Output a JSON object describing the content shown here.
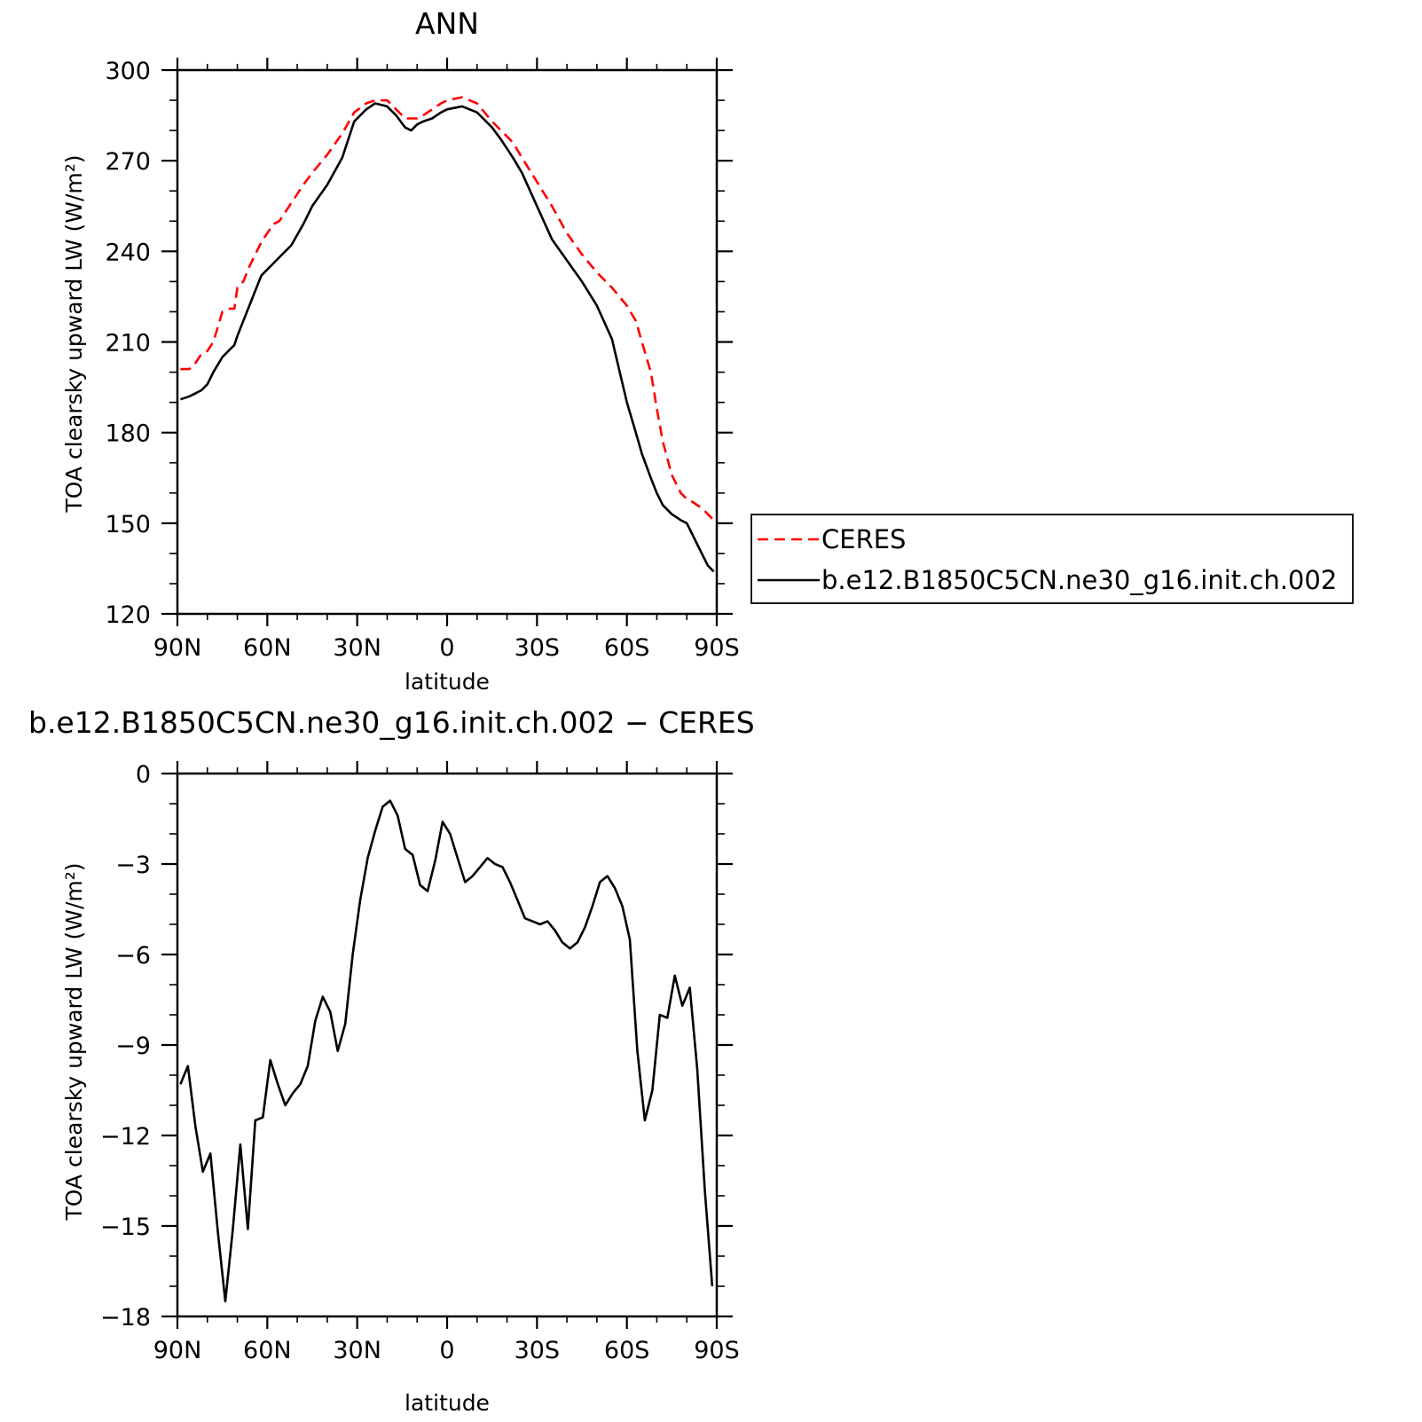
{
  "chart_data": [
    {
      "type": "line",
      "title": "ANN",
      "xlabel": "latitude",
      "ylabel": "TOA clearsky upward LW (W/m²)",
      "x_range": [
        90,
        -90
      ],
      "ylim": [
        120,
        300
      ],
      "x_ticks": [
        {
          "value": 90,
          "label": "90N"
        },
        {
          "value": 60,
          "label": "60N"
        },
        {
          "value": 30,
          "label": "30N"
        },
        {
          "value": 0,
          "label": "0"
        },
        {
          "value": -30,
          "label": "30S"
        },
        {
          "value": -60,
          "label": "60S"
        },
        {
          "value": -90,
          "label": "90S"
        }
      ],
      "y_ticks": [
        120,
        150,
        180,
        210,
        240,
        270,
        300
      ],
      "grid": false,
      "legend_position": "right",
      "series": [
        {
          "name": "CERES",
          "color": "#ff0000",
          "dash": "dashed",
          "x": [
            89,
            86,
            84,
            82,
            80,
            78,
            75,
            73,
            71,
            70,
            68,
            66,
            64,
            62,
            60,
            58,
            56,
            54,
            52,
            48,
            45,
            40,
            35,
            31,
            27,
            24,
            20,
            17,
            14,
            12,
            10,
            8,
            5,
            2,
            0,
            -5,
            -10,
            -15,
            -18,
            -22,
            -25,
            -30,
            -35,
            -40,
            -45,
            -50,
            -55,
            -60,
            -63,
            -65,
            -68,
            -70,
            -72,
            -75,
            -78,
            -80,
            -82,
            -85,
            -87,
            -89
          ],
          "values": [
            201,
            201,
            203,
            206,
            207,
            210,
            220,
            221,
            221,
            228,
            230,
            235,
            239,
            243,
            246,
            249,
            250,
            253,
            256,
            262,
            266,
            272,
            279,
            286,
            289,
            290,
            290,
            287,
            284,
            284,
            284,
            285,
            287,
            289,
            290,
            291,
            289,
            283,
            280,
            276,
            271,
            263,
            255,
            246,
            239,
            233,
            228,
            222,
            217,
            210,
            200,
            188,
            177,
            166,
            160,
            158,
            157,
            155,
            153,
            151
          ]
        },
        {
          "name": "b.e12.B1850C5CN.ne30_g16.init.ch.002",
          "color": "#000000",
          "dash": "solid",
          "x": [
            89,
            86,
            84,
            82,
            80,
            78,
            75,
            73,
            71,
            70,
            68,
            66,
            64,
            62,
            60,
            58,
            56,
            54,
            52,
            48,
            45,
            40,
            35,
            31,
            27,
            24,
            20,
            17,
            14,
            12,
            10,
            8,
            5,
            2,
            0,
            -5,
            -10,
            -15,
            -18,
            -22,
            -25,
            -30,
            -35,
            -40,
            -45,
            -50,
            -55,
            -60,
            -63,
            -65,
            -68,
            -70,
            -72,
            -75,
            -78,
            -80,
            -82,
            -85,
            -87,
            -89
          ],
          "values": [
            191,
            192,
            193,
            194,
            196,
            200,
            205,
            207,
            209,
            212,
            217,
            222,
            227,
            232,
            234,
            236,
            238,
            240,
            242,
            249,
            255,
            262,
            271,
            283,
            287,
            289,
            288,
            285,
            281,
            280,
            282,
            283,
            284,
            286,
            287,
            288,
            286,
            281,
            277,
            271,
            266,
            255,
            244,
            237,
            230,
            222,
            211,
            190,
            180,
            173,
            165,
            160,
            156,
            153,
            151,
            150,
            146,
            140,
            136,
            134
          ]
        }
      ]
    },
    {
      "type": "line",
      "title": "b.e12.B1850C5CN.ne30_g16.init.ch.002 − CERES",
      "xlabel": "latitude",
      "ylabel": "TOA clearsky upward LW (W/m²)",
      "x_range": [
        90,
        -90
      ],
      "ylim": [
        -18,
        0
      ],
      "x_ticks": [
        {
          "value": 90,
          "label": "90N"
        },
        {
          "value": 60,
          "label": "60N"
        },
        {
          "value": 30,
          "label": "30N"
        },
        {
          "value": 0,
          "label": "0"
        },
        {
          "value": -30,
          "label": "30S"
        },
        {
          "value": -60,
          "label": "60S"
        },
        {
          "value": -90,
          "label": "90S"
        }
      ],
      "y_ticks": [
        0,
        -3,
        -6,
        -9,
        -12,
        -15,
        -18
      ],
      "grid": false,
      "series": [
        {
          "name": "b.e12.B1850C5CN.ne30_g16.init.ch.002 − CERES",
          "color": "#000000",
          "dash": "solid",
          "x": [
            89,
            86.5,
            84,
            81.5,
            79,
            76.5,
            74,
            71.5,
            69,
            66.5,
            64,
            61.5,
            59,
            56.5,
            54,
            51.5,
            49,
            46.5,
            44,
            41.5,
            39,
            36.5,
            34,
            31.5,
            29,
            26.5,
            24,
            21.5,
            19,
            16.5,
            14,
            11.5,
            9,
            6.5,
            4,
            1.5,
            -1,
            -3.5,
            -6,
            -8.5,
            -11,
            -13.5,
            -16,
            -18.5,
            -21,
            -23.5,
            -26,
            -28.5,
            -31,
            -33.5,
            -36,
            -38.5,
            -41,
            -43.5,
            -46,
            -48.5,
            -51,
            -53.5,
            -56,
            -58.5,
            -61,
            -63.5,
            -66,
            -68.5,
            -71,
            -73.5,
            -76,
            -78.5,
            -81,
            -83.5,
            -86,
            -88.5
          ],
          "values": [
            -10.3,
            -9.7,
            -11.7,
            -13.2,
            -12.6,
            -15.2,
            -17.5,
            -15.1,
            -12.3,
            -15.1,
            -11.5,
            -11.4,
            -9.5,
            -10.3,
            -11.0,
            -10.6,
            -10.3,
            -9.7,
            -8.2,
            -7.4,
            -7.9,
            -9.2,
            -8.3,
            -6.0,
            -4.2,
            -2.8,
            -1.9,
            -1.1,
            -0.9,
            -1.4,
            -2.5,
            -2.7,
            -3.7,
            -3.9,
            -2.9,
            -1.6,
            -2.0,
            -2.8,
            -3.6,
            -3.4,
            -3.1,
            -2.8,
            -3.0,
            -3.1,
            -3.6,
            -4.2,
            -4.8,
            -4.9,
            -5.0,
            -4.9,
            -5.2,
            -5.6,
            -5.8,
            -5.6,
            -5.1,
            -4.4,
            -3.6,
            -3.4,
            -3.8,
            -4.4,
            -5.5,
            -9.2,
            -11.5,
            -10.5,
            -8.0,
            -8.1,
            -6.7,
            -7.7,
            -7.1,
            -9.8,
            -13.8,
            -17.0
          ]
        }
      ]
    }
  ]
}
